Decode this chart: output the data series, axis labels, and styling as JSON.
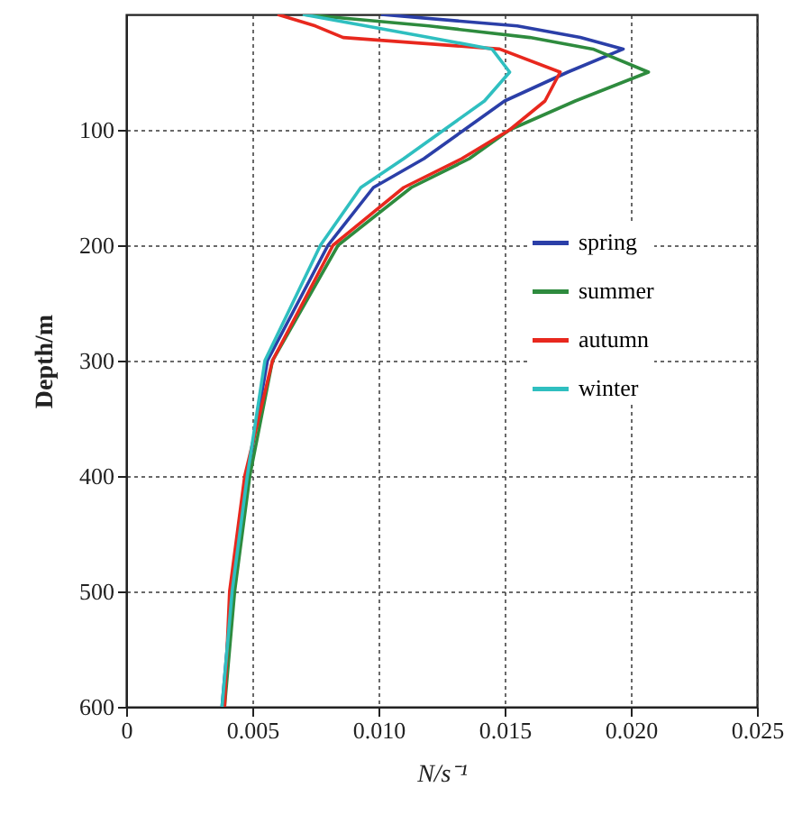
{
  "chart_data": {
    "type": "line",
    "xlabel": "N/s⁻¹",
    "ylabel": "Depth/m",
    "xlim": [
      0,
      0.025
    ],
    "xticks": [
      0,
      0.005,
      {
        "value": 0.01,
        "label": "0.010"
      },
      0.015,
      {
        "value": 0.02,
        "label": "0.020"
      },
      0.025
    ],
    "ylim": [
      600,
      0
    ],
    "yticks": [
      100,
      200,
      300,
      400,
      500,
      600
    ],
    "grid": true,
    "legend": "right",
    "series": [
      {
        "name": "spring",
        "color": "#2b3fa8",
        "x": [
          0.0101,
          0.0155,
          0.018,
          0.0197,
          0.0175,
          0.015,
          0.0134,
          0.0118,
          0.0098,
          0.008,
          0.0056,
          0.0048,
          0.0042,
          0.0038
        ],
        "values": [
          0,
          10,
          20,
          30,
          50,
          75,
          100,
          125,
          150,
          200,
          300,
          400,
          500,
          600
        ]
      },
      {
        "name": "summer",
        "color": "#2e8b3e",
        "x": [
          0.007,
          0.012,
          0.016,
          0.0185,
          0.0207,
          0.0178,
          0.0152,
          0.0136,
          0.0113,
          0.0084,
          0.0058,
          0.0049,
          0.0043,
          0.0039
        ],
        "values": [
          0,
          10,
          20,
          30,
          50,
          75,
          100,
          125,
          150,
          200,
          300,
          400,
          500,
          600
        ]
      },
      {
        "name": "autumn",
        "color": "#e8281e",
        "x": [
          0.006,
          0.0075,
          0.0086,
          0.0148,
          0.0172,
          0.0166,
          0.0152,
          0.0133,
          0.011,
          0.0082,
          0.0058,
          0.0047,
          0.0041,
          0.0039
        ],
        "values": [
          0,
          10,
          20,
          30,
          50,
          75,
          100,
          125,
          150,
          200,
          300,
          400,
          500,
          600
        ]
      },
      {
        "name": "winter",
        "color": "#2fbfc0",
        "x": [
          0.007,
          0.0095,
          0.012,
          0.0145,
          0.0152,
          0.0142,
          0.0126,
          0.011,
          0.0093,
          0.0077,
          0.0055,
          0.0048,
          0.0042,
          0.0038
        ],
        "values": [
          0,
          10,
          20,
          30,
          50,
          75,
          100,
          125,
          150,
          200,
          300,
          400,
          500,
          600
        ]
      }
    ]
  }
}
